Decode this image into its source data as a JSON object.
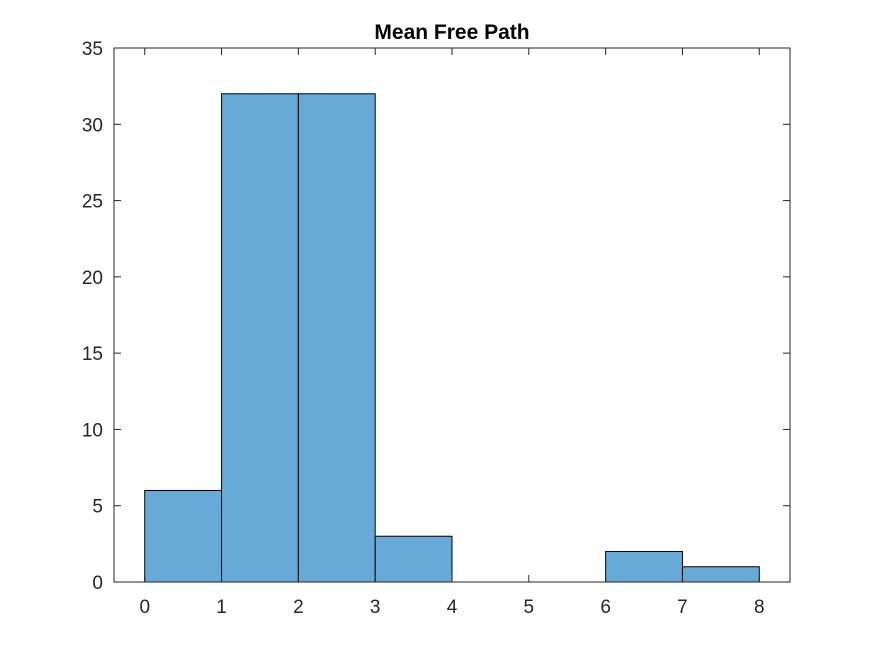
{
  "chart_data": {
    "type": "bar",
    "title": "Mean Free Path",
    "xlabel": "",
    "ylabel": "",
    "bin_edges": [
      0,
      1,
      2,
      3,
      4,
      5,
      6,
      7,
      8
    ],
    "values": [
      6,
      32,
      32,
      3,
      0,
      0,
      2,
      1
    ],
    "xlim": [
      -0.4,
      8.4
    ],
    "ylim": [
      0,
      35
    ],
    "xticks": [
      "0",
      "1",
      "2",
      "3",
      "4",
      "5",
      "6",
      "7",
      "8"
    ],
    "yticks": [
      "0",
      "5",
      "10",
      "15",
      "20",
      "25",
      "30",
      "35"
    ],
    "grid": false,
    "legend": "none",
    "colors": {
      "bar_fill": "#67aad8",
      "bar_edge": "#000000",
      "axis": "#262626"
    }
  }
}
